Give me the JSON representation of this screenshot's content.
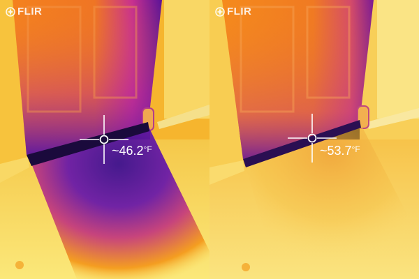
{
  "panels": [
    {
      "logo": {
        "text": "FLIR",
        "icon": "flir-flame-icon"
      },
      "measurement": {
        "value": "~46.2",
        "unit": "°F"
      }
    },
    {
      "logo": {
        "text": "FLIR",
        "icon": "flir-flame-icon"
      },
      "measurement": {
        "value": "~53.7",
        "unit": "°F"
      }
    }
  ],
  "palette": {
    "hot": "#f8ef7a",
    "warm": "#f9a319",
    "mid": "#e2541f",
    "cool": "#9a2fb0",
    "cold": "#3c1090"
  }
}
